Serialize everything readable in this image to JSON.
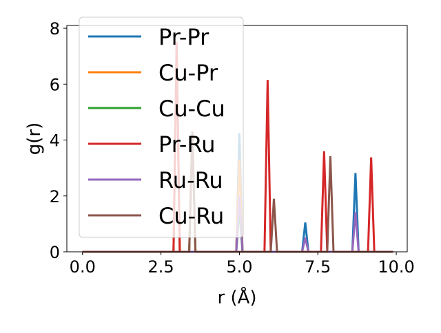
{
  "chart_data": {
    "type": "line",
    "title": "",
    "xlabel": "r (Å)",
    "ylabel": "g(r)",
    "xlim": [
      -0.5,
      10.35
    ],
    "ylim": [
      0,
      8.1
    ],
    "xticks": [
      0.0,
      2.5,
      5.0,
      7.5,
      10.0
    ],
    "xtick_labels": [
      "0.0",
      "2.5",
      "5.0",
      "7.5",
      "10.0"
    ],
    "yticks": [
      0,
      2,
      4,
      6,
      8
    ],
    "ytick_labels": [
      "0",
      "2",
      "4",
      "6",
      "8"
    ],
    "legend_position": "top-left",
    "x_range": [
      0.0,
      9.9
    ],
    "peak_half_width": 0.1,
    "series": [
      {
        "name": "Pr-Pr",
        "color": "#1f77b4",
        "peaks": [
          [
            3.0,
            7.4
          ],
          [
            5.0,
            4.25
          ],
          [
            7.1,
            1.05
          ],
          [
            8.7,
            2.82
          ]
        ]
      },
      {
        "name": "Cu-Pr",
        "color": "#ff7f0e",
        "peaks": [
          [
            3.0,
            7.4
          ],
          [
            3.5,
            4.3
          ],
          [
            5.0,
            3.3
          ]
        ]
      },
      {
        "name": "Cu-Cu",
        "color": "#2ca02c",
        "peaks": [
          [
            3.5,
            4.3
          ],
          [
            5.0,
            1.5
          ]
        ]
      },
      {
        "name": "Pr-Ru",
        "color": "#d62728",
        "peaks": [
          [
            3.0,
            7.5
          ],
          [
            5.9,
            6.15
          ],
          [
            7.7,
            3.6
          ],
          [
            9.2,
            3.38
          ]
        ]
      },
      {
        "name": "Ru-Ru",
        "color": "#9467bd",
        "peaks": [
          [
            5.0,
            2.0
          ],
          [
            7.1,
            0.5
          ],
          [
            8.7,
            1.42
          ]
        ]
      },
      {
        "name": "Cu-Ru",
        "color": "#8c564b",
        "peaks": [
          [
            3.5,
            4.3
          ],
          [
            6.1,
            1.9
          ],
          [
            7.9,
            3.42
          ]
        ]
      }
    ]
  }
}
